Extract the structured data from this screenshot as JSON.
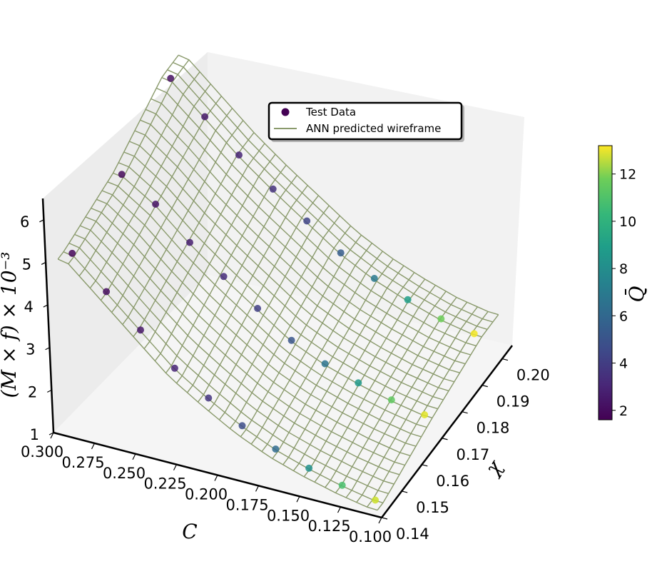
{
  "chart_data": {
    "type": "scatter",
    "subtype": "3d-scatter-with-surface-wireframe",
    "title": "",
    "xlabel": "C",
    "ylabel": "χ",
    "zlabel": "(M × f) × 10⁻³",
    "colorbar_label": "Q̄",
    "x_ticks": [
      "0.300",
      "0.275",
      "0.250",
      "0.225",
      "0.200",
      "0.175",
      "0.150",
      "0.125",
      "0.100"
    ],
    "y_ticks": [
      "0.14",
      "0.15",
      "0.16",
      "0.17",
      "0.18",
      "0.19",
      "0.20"
    ],
    "z_ticks": [
      "1",
      "2",
      "3",
      "4",
      "5",
      "6"
    ],
    "colorbar_ticks": [
      "2",
      "4",
      "6",
      "8",
      "10",
      "12"
    ],
    "xlim": [
      0.3,
      0.1
    ],
    "ylim": [
      0.14,
      0.205
    ],
    "zlim": [
      1,
      6.5
    ],
    "colorbar_range": [
      1.6,
      13.2
    ],
    "colormap": "viridis",
    "legend": {
      "position": "upper-center",
      "entries": [
        {
          "label": "Test Data",
          "marker": "circle",
          "color": "#440154"
        },
        {
          "label": "ANN predicted wireframe",
          "marker": "line",
          "color": "#8a9a6c"
        }
      ]
    },
    "series": [
      {
        "name": "Test Data",
        "chi": 0.145,
        "C": [
          0.29,
          0.27,
          0.25,
          0.23,
          0.21,
          0.19,
          0.17,
          0.15,
          0.13,
          0.11
        ],
        "M_f": [
          5.0,
          4.3,
          3.6,
          2.9,
          2.4,
          1.95,
          1.6,
          1.35,
          1.15,
          1.0
        ],
        "Q": [
          1.8,
          2.0,
          2.3,
          2.8,
          3.4,
          4.3,
          5.6,
          7.4,
          9.8,
          12.3
        ]
      },
      {
        "name": "Test Data",
        "chi": 0.17,
        "C": [
          0.29,
          0.27,
          0.25,
          0.23,
          0.21,
          0.19,
          0.17,
          0.15,
          0.13,
          0.11
        ],
        "M_f": [
          5.3,
          4.8,
          4.1,
          3.5,
          2.95,
          2.4,
          2.05,
          1.8,
          1.6,
          1.45
        ],
        "Q": [
          1.9,
          2.2,
          2.6,
          3.1,
          3.8,
          4.7,
          6.0,
          7.8,
          10.3,
          12.7
        ]
      },
      {
        "name": "Test Data",
        "chi": 0.195,
        "C": [
          0.29,
          0.27,
          0.25,
          0.23,
          0.21,
          0.19,
          0.17,
          0.15,
          0.13,
          0.11
        ],
        "M_f": [
          6.0,
          5.3,
          4.6,
          4.0,
          3.45,
          2.9,
          2.5,
          2.2,
          1.95,
          1.8
        ],
        "Q": [
          2.1,
          2.4,
          2.8,
          3.3,
          4.0,
          5.0,
          6.3,
          8.1,
          10.6,
          13.0
        ]
      }
    ],
    "wireframe": {
      "name": "ANN predicted wireframe",
      "color": "#8a9a6c"
    }
  }
}
